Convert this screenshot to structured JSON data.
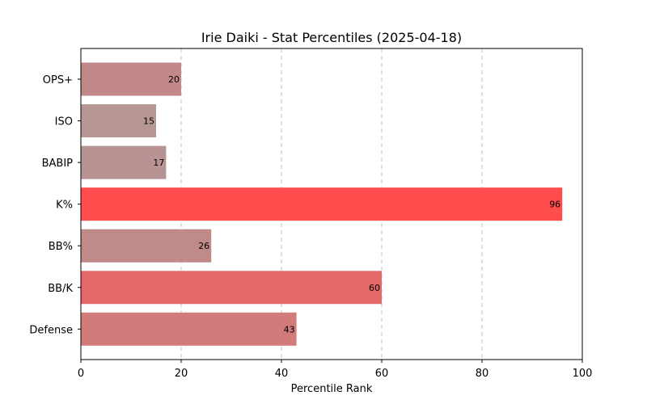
{
  "chart_data": {
    "type": "bar",
    "orientation": "horizontal",
    "title": "Irie Daiki - Stat Percentiles (2025-04-18)",
    "xlabel": "Percentile Rank",
    "ylabel": "",
    "xlim": [
      0,
      100
    ],
    "xticks": [
      0,
      20,
      40,
      60,
      80,
      100
    ],
    "grid": "vertical dashed",
    "categories": [
      "OPS+",
      "ISO",
      "BABIP",
      "K%",
      "BB%",
      "BB/K",
      "Defense"
    ],
    "values": [
      20,
      15,
      17,
      96,
      26,
      60,
      43
    ],
    "colors": [
      "#c08887",
      "#b79794",
      "#b79493",
      "#ff4c4c",
      "#c08a89",
      "#e36968",
      "#d17b7a"
    ],
    "data_labels": [
      "20",
      "15",
      "17",
      "96",
      "26",
      "60",
      "43"
    ]
  }
}
